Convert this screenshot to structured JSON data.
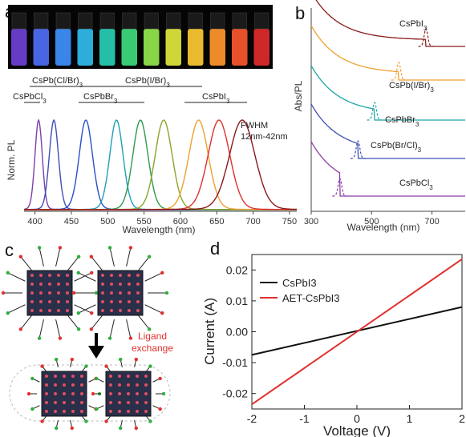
{
  "panels": {
    "a": "a",
    "b": "b",
    "c": "c",
    "d": "d"
  },
  "panel_a": {
    "ylabel": "Norm. PL",
    "xlabel": "Wavelength (nm)",
    "fwhm_label": "FWHM",
    "fwhm_range": "12nm-42nm",
    "group_labels": [
      "CsPb(Cl/Br)",
      "CsPbBr",
      "CsPb(I/Br)",
      "CsPbCl",
      "CsPbI"
    ],
    "subscript": "3",
    "xticks": [
      "400",
      "450",
      "500",
      "550",
      "600",
      "650",
      "700",
      "750"
    ],
    "vial_colors": [
      "#6d3fcf",
      "#4e6af0",
      "#3d8cf5",
      "#2fb6e6",
      "#27c9b0",
      "#3bd67a",
      "#8fe04a",
      "#d9e33a",
      "#f7c530",
      "#f9922c",
      "#f2552b",
      "#d92a2a"
    ]
  },
  "panel_b": {
    "ylabel": "Abs/PL",
    "xlabel": "Wavelength (nm)",
    "xticks": [
      "300",
      "500",
      "700"
    ],
    "labels": [
      "CsPbI",
      "CsPb(I/Br)",
      "CsPbBr",
      "CsPb(Br/Cl)",
      "CsPbCl"
    ],
    "subscript": "3"
  },
  "panel_c": {
    "arrow_label_1": "Ligand",
    "arrow_label_2": "exchange"
  },
  "chart_data": [
    {
      "type": "line",
      "title": "",
      "xlabel": "Wavelength (nm)",
      "ylabel": "Norm. PL",
      "xlim": [
        385,
        760
      ],
      "annotations": [
        "FWHM",
        "12nm-42nm"
      ],
      "series": [
        {
          "peak": 405,
          "fwhm": 12,
          "color": "#7d3fa8"
        },
        {
          "peak": 426,
          "fwhm": 15,
          "color": "#3f4fb5"
        },
        {
          "peak": 470,
          "fwhm": 22,
          "color": "#2d4fc9"
        },
        {
          "peak": 512,
          "fwhm": 22,
          "color": "#1f9fb5"
        },
        {
          "peak": 545,
          "fwhm": 25,
          "color": "#2f9a4e"
        },
        {
          "peak": 577,
          "fwhm": 28,
          "color": "#8da32a"
        },
        {
          "peak": 625,
          "fwhm": 32,
          "color": "#f0a030"
        },
        {
          "peak": 653,
          "fwhm": 36,
          "color": "#e0302b"
        },
        {
          "peak": 685,
          "fwhm": 42,
          "color": "#8b1a1a"
        }
      ]
    },
    {
      "type": "line",
      "title": "",
      "xlabel": "Wavelength (nm)",
      "ylabel": "Abs/PL",
      "xlim": [
        300,
        810
      ],
      "series": [
        {
          "name": "CsPbI3",
          "edge": 680,
          "offset": 4,
          "color": "#8b1a1a"
        },
        {
          "name": "CsPb(I/Br)3",
          "edge": 590,
          "offset": 3,
          "color": "#f0a030"
        },
        {
          "name": "CsPbBr3",
          "edge": 510,
          "offset": 2,
          "color": "#1fa5a5"
        },
        {
          "name": "CsPb(Br/Cl)3",
          "edge": 455,
          "offset": 1,
          "color": "#3f4fb5"
        },
        {
          "name": "CsPbCl3",
          "edge": 395,
          "offset": 0,
          "color": "#8a3fa8"
        }
      ]
    },
    {
      "type": "line",
      "title": "",
      "xlabel": "Voltage (V)",
      "ylabel": "Current (A)",
      "xlim": [
        -2,
        2
      ],
      "ylim": [
        -0.025,
        0.025
      ],
      "xticks": [
        "-2",
        "-1",
        "0",
        "1",
        "2"
      ],
      "yticks": [
        "0.02",
        "0.01",
        "0.00",
        "-0.01",
        "-0.02"
      ],
      "series": [
        {
          "name": "CsPbI3",
          "x": [
            -2,
            2
          ],
          "y": [
            -0.0075,
            0.008
          ],
          "color": "#111111"
        },
        {
          "name": "AET-CsPbI3",
          "x": [
            -2,
            2
          ],
          "y": [
            -0.0235,
            0.0235
          ],
          "color": "#e03030"
        }
      ]
    }
  ]
}
